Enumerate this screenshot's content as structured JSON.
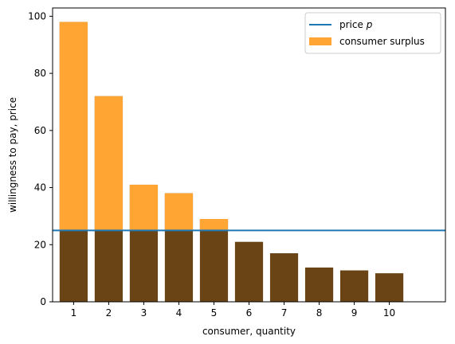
{
  "chart_data": {
    "type": "bar",
    "title": "",
    "xlabel": "consumer, quantity",
    "ylabel": "willingness to pay, price",
    "categories": [
      "1",
      "2",
      "3",
      "4",
      "5",
      "6",
      "7",
      "8",
      "9",
      "10"
    ],
    "x": [
      1,
      2,
      3,
      4,
      5,
      6,
      7,
      8,
      9,
      10
    ],
    "series": [
      {
        "name": "",
        "values": [
          98,
          72,
          41,
          38,
          29,
          21,
          17,
          12,
          11,
          10
        ],
        "color": "#6b4415"
      },
      {
        "name": "consumer surplus",
        "values": [
          73,
          47,
          16,
          13,
          4,
          0,
          0,
          0,
          0,
          0
        ],
        "base": 25,
        "color": "#ffa533"
      }
    ],
    "price_line": {
      "name": "price p",
      "name_prefix": "price ",
      "name_italic": "p",
      "value": 25,
      "color": "#1f77b4"
    },
    "xlim": [
      0.4,
      11.6
    ],
    "ylim": [
      0,
      102.9
    ],
    "yticks": [
      0,
      20,
      40,
      60,
      80,
      100
    ],
    "legend": "top-right",
    "grid": false
  }
}
